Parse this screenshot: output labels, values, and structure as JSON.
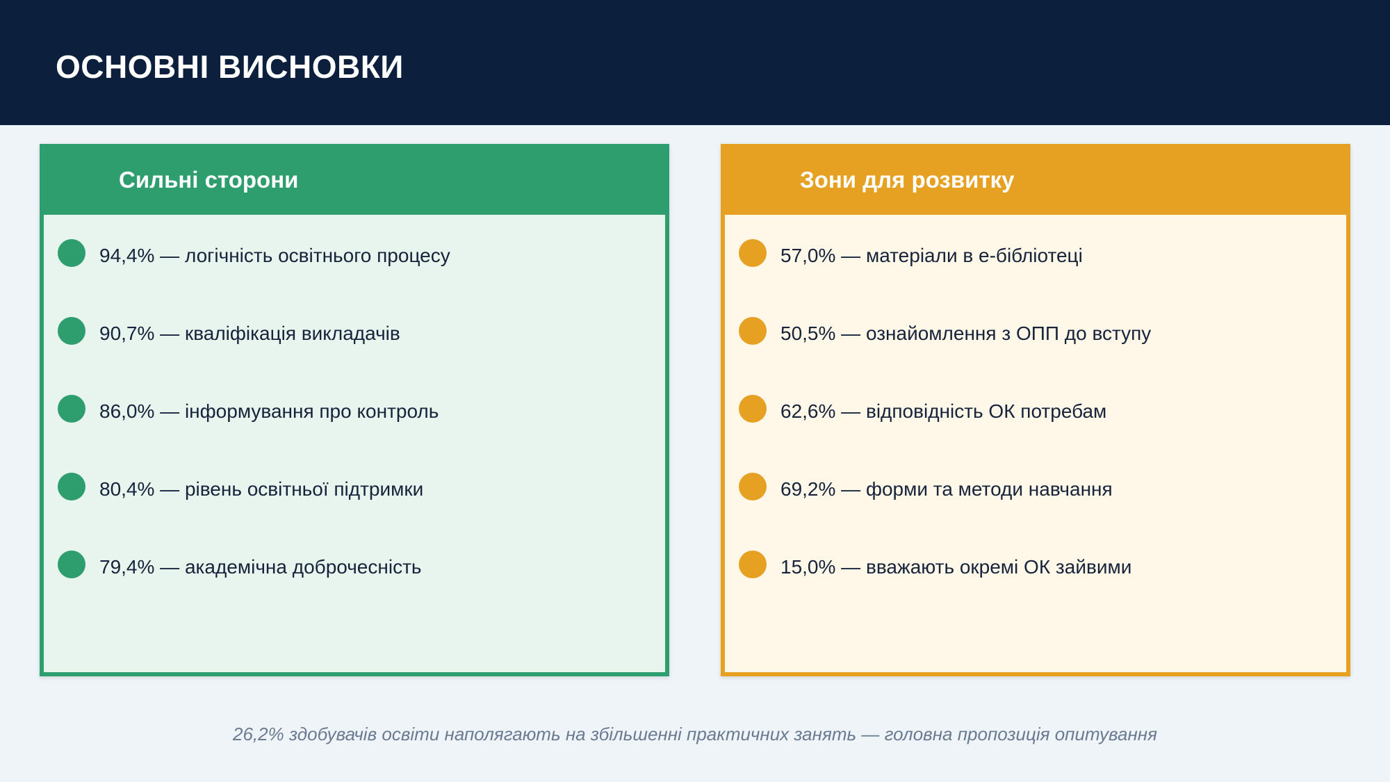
{
  "header": {
    "title": "ОСНОВНІ ВИСНОВКИ"
  },
  "strengths": {
    "title": "Сильні сторони",
    "accent_color": "#2e9e6e",
    "items": [
      {
        "text": "94,4% — логічність освітнього процесу"
      },
      {
        "text": "90,7% — кваліфікація викладачів"
      },
      {
        "text": "86,0% — інформування про контроль"
      },
      {
        "text": "80,4% — рівень освітньої підтримки"
      },
      {
        "text": "79,4% — академічна доброчесність"
      }
    ]
  },
  "growth": {
    "title": "Зони для розвитку",
    "accent_color": "#e6a022",
    "items": [
      {
        "text": "57,0% — матеріали в е-бібліотеці"
      },
      {
        "text": "50,5% — ознайомлення з ОПП до вступу"
      },
      {
        "text": "62,6% — відповідність ОК потребам"
      },
      {
        "text": "69,2% — форми та методи навчання"
      },
      {
        "text": "15,0% — вважають окремі ОК зайвими"
      }
    ]
  },
  "footer": {
    "note": "26,2% здобувачів освіти наполягають на збільшенні практичних занять — головна пропозиція опитування"
  },
  "colors": {
    "header_bg": "#0c1f3c",
    "page_bg": "#eef4f8"
  }
}
